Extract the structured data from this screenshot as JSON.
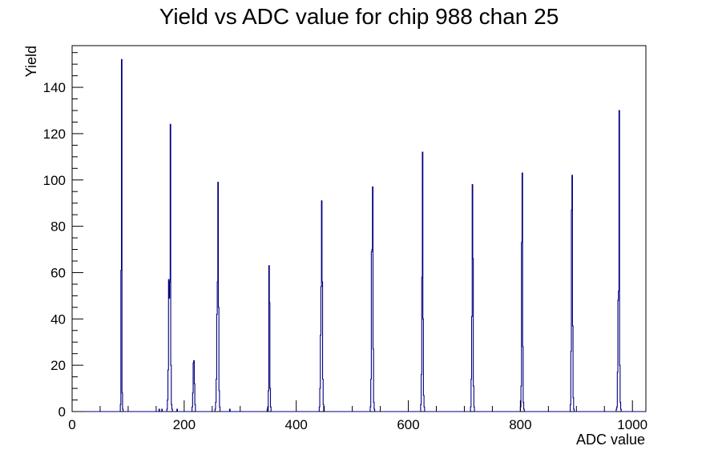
{
  "chart_data": {
    "type": "histogram",
    "title": "Yield vs ADC value for chip 988 chan 25",
    "xlabel": "ADC value",
    "ylabel": "Yield",
    "xlim": [
      0,
      1024
    ],
    "ylim": [
      0,
      158
    ],
    "xticks": [
      0,
      200,
      400,
      600,
      800,
      1000
    ],
    "yticks": [
      0,
      20,
      40,
      60,
      80,
      100,
      120,
      140
    ],
    "grid": false,
    "legend": "none",
    "line_color": "#000080",
    "bins": [
      [
        86,
        3
      ],
      [
        87,
        61
      ],
      [
        88,
        152
      ],
      [
        89,
        8
      ],
      [
        90,
        1
      ],
      [
        155,
        1
      ],
      [
        160,
        1
      ],
      [
        169,
        1
      ],
      [
        170,
        5
      ],
      [
        171,
        18
      ],
      [
        172,
        57
      ],
      [
        173,
        49
      ],
      [
        174,
        56
      ],
      [
        175,
        124
      ],
      [
        176,
        20
      ],
      [
        177,
        3
      ],
      [
        178,
        1
      ],
      [
        187,
        1
      ],
      [
        214,
        2
      ],
      [
        215,
        8
      ],
      [
        216,
        21
      ],
      [
        217,
        22
      ],
      [
        218,
        12
      ],
      [
        219,
        3
      ],
      [
        255,
        1
      ],
      [
        256,
        4
      ],
      [
        257,
        14
      ],
      [
        258,
        42
      ],
      [
        259,
        56
      ],
      [
        260,
        99
      ],
      [
        261,
        45
      ],
      [
        262,
        9
      ],
      [
        263,
        2
      ],
      [
        281,
        1
      ],
      [
        348,
        1
      ],
      [
        349,
        2
      ],
      [
        350,
        9
      ],
      [
        351,
        63
      ],
      [
        352,
        47
      ],
      [
        353,
        10
      ],
      [
        354,
        2
      ],
      [
        441,
        2
      ],
      [
        442,
        10
      ],
      [
        443,
        33
      ],
      [
        444,
        54
      ],
      [
        445,
        91
      ],
      [
        446,
        56
      ],
      [
        447,
        14
      ],
      [
        448,
        3
      ],
      [
        532,
        2
      ],
      [
        533,
        14
      ],
      [
        534,
        69
      ],
      [
        535,
        70
      ],
      [
        536,
        97
      ],
      [
        537,
        27
      ],
      [
        538,
        4
      ],
      [
        539,
        1
      ],
      [
        622,
        3
      ],
      [
        623,
        16
      ],
      [
        624,
        58
      ],
      [
        625,
        112
      ],
      [
        626,
        40
      ],
      [
        627,
        7
      ],
      [
        628,
        2
      ],
      [
        711,
        2
      ],
      [
        712,
        14
      ],
      [
        713,
        41
      ],
      [
        714,
        98
      ],
      [
        715,
        66
      ],
      [
        716,
        11
      ],
      [
        717,
        2
      ],
      [
        800,
        2
      ],
      [
        801,
        11
      ],
      [
        802,
        73
      ],
      [
        803,
        103
      ],
      [
        804,
        28
      ],
      [
        805,
        4
      ],
      [
        806,
        1
      ],
      [
        889,
        3
      ],
      [
        890,
        26
      ],
      [
        891,
        87
      ],
      [
        892,
        102
      ],
      [
        893,
        37
      ],
      [
        894,
        6
      ],
      [
        895,
        1
      ],
      [
        971,
        1
      ],
      [
        972,
        2
      ],
      [
        973,
        17
      ],
      [
        974,
        48
      ],
      [
        975,
        52
      ],
      [
        976,
        130
      ],
      [
        977,
        20
      ],
      [
        978,
        4
      ],
      [
        979,
        1
      ]
    ]
  }
}
